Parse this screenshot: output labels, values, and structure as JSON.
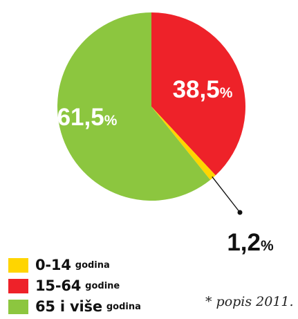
{
  "chart_data": {
    "type": "pie",
    "categories": [
      "0-14",
      "15-64",
      "65 i više"
    ],
    "values": [
      1.2,
      38.5,
      61.5
    ],
    "data_labels": {
      "share_0_14": "1,2",
      "share_15_64": "38,5",
      "share_65_plus": "61,5",
      "percent_symbol": "%"
    },
    "colors": [
      "#ffd500",
      "#ee2229",
      "#8cc63f"
    ],
    "legend": [
      {
        "label": "0-14",
        "unit": "godina",
        "color": "#ffd500"
      },
      {
        "label": "15-64",
        "unit": "godine",
        "color": "#ee2229"
      },
      {
        "label": "65 i više",
        "unit": "godina",
        "color": "#8cc63f"
      }
    ],
    "legend_position": "bottom-left",
    "note": "* popis 2011."
  }
}
